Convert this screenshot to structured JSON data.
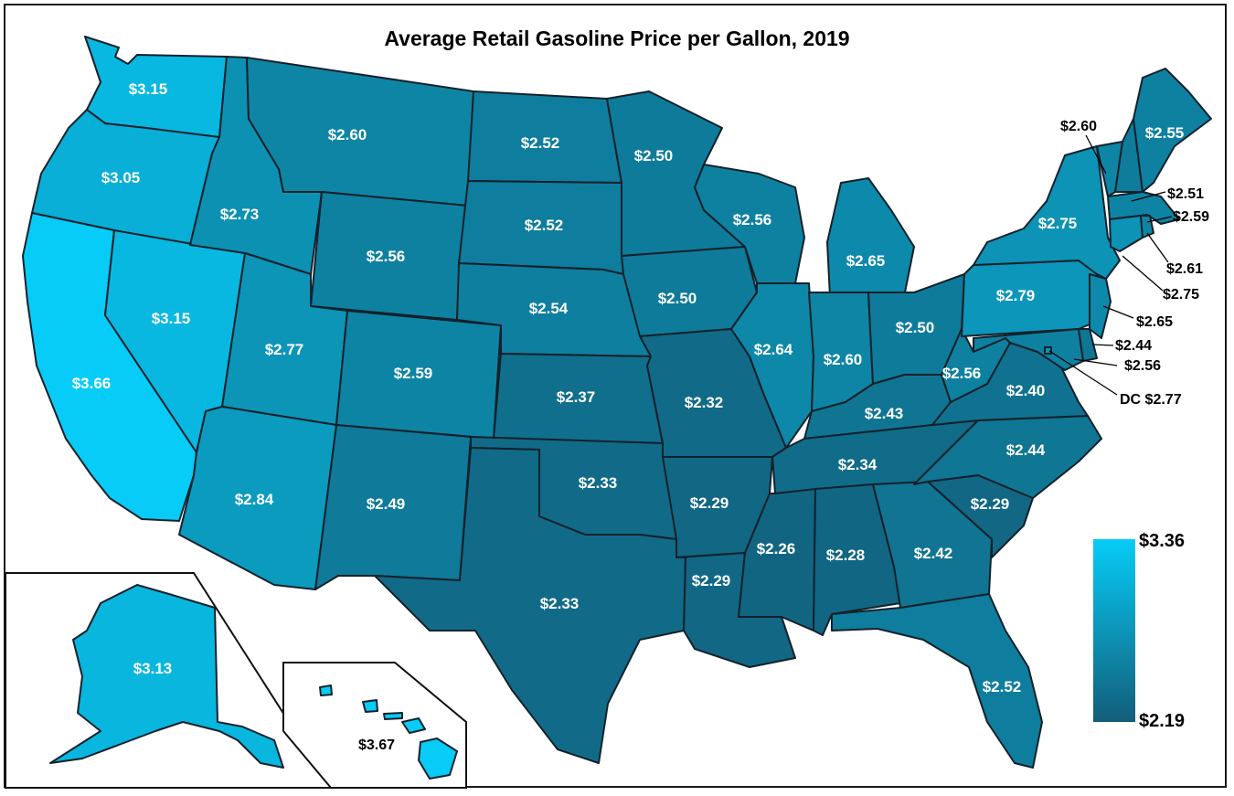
{
  "title": "Average Retail Gasoline Price per Gallon, 2019",
  "colors": {
    "low": "#125e79",
    "high": "#06ccf7",
    "border": "#14212b"
  },
  "legend": {
    "max_label": "$3.36",
    "min_label": "$2.19",
    "max_value": 3.36,
    "min_value": 2.19
  },
  "states": {
    "WA": {
      "label": "$3.15",
      "value": 3.15
    },
    "OR": {
      "label": "$3.05",
      "value": 3.05
    },
    "CA": {
      "label": "$3.66",
      "value": 3.66
    },
    "NV": {
      "label": "$3.15",
      "value": 3.15
    },
    "ID": {
      "label": "$2.73",
      "value": 2.73
    },
    "MT": {
      "label": "$2.60",
      "value": 2.6
    },
    "WY": {
      "label": "$2.56",
      "value": 2.56
    },
    "UT": {
      "label": "$2.77",
      "value": 2.77
    },
    "AZ": {
      "label": "$2.84",
      "value": 2.84
    },
    "CO": {
      "label": "$2.59",
      "value": 2.59
    },
    "NM": {
      "label": "$2.49",
      "value": 2.49
    },
    "ND": {
      "label": "$2.52",
      "value": 2.52
    },
    "SD": {
      "label": "$2.52",
      "value": 2.52
    },
    "NE": {
      "label": "$2.54",
      "value": 2.54
    },
    "KS": {
      "label": "$2.37",
      "value": 2.37
    },
    "OK": {
      "label": "$2.33",
      "value": 2.33
    },
    "TX": {
      "label": "$2.33",
      "value": 2.33
    },
    "MN": {
      "label": "$2.50",
      "value": 2.5
    },
    "IA": {
      "label": "$2.50",
      "value": 2.5
    },
    "MO": {
      "label": "$2.32",
      "value": 2.32
    },
    "AR": {
      "label": "$2.29",
      "value": 2.29
    },
    "LA": {
      "label": "$2.29",
      "value": 2.29
    },
    "WI": {
      "label": "$2.56",
      "value": 2.56
    },
    "IL": {
      "label": "$2.64",
      "value": 2.64
    },
    "MI": {
      "label": "$2.65",
      "value": 2.65
    },
    "IN": {
      "label": "$2.60",
      "value": 2.6
    },
    "OH": {
      "label": "$2.50",
      "value": 2.5
    },
    "KY": {
      "label": "$2.43",
      "value": 2.43
    },
    "TN": {
      "label": "$2.34",
      "value": 2.34
    },
    "MS": {
      "label": "$2.26",
      "value": 2.26
    },
    "AL": {
      "label": "$2.28",
      "value": 2.28
    },
    "GA": {
      "label": "$2.42",
      "value": 2.42
    },
    "FL": {
      "label": "$2.52",
      "value": 2.52
    },
    "SC": {
      "label": "$2.29",
      "value": 2.29
    },
    "NC": {
      "label": "$2.44",
      "value": 2.44
    },
    "VA": {
      "label": "$2.40",
      "value": 2.4
    },
    "WV": {
      "label": "$2.56",
      "value": 2.56
    },
    "PA": {
      "label": "$2.79",
      "value": 2.79
    },
    "NY": {
      "label": "$2.75",
      "value": 2.75
    },
    "ME": {
      "label": "$2.55",
      "value": 2.55
    },
    "VT": {
      "label": "$2.60",
      "value": 2.6
    },
    "NH": {
      "label": "$2.51",
      "value": 2.51
    },
    "MA": {
      "label": "$2.59",
      "value": 2.59
    },
    "RI": {
      "label": "$2.61",
      "value": 2.61
    },
    "CT": {
      "label": "$2.75",
      "value": 2.75
    },
    "NJ": {
      "label": "$2.65",
      "value": 2.65
    },
    "DE": {
      "label": "$2.44",
      "value": 2.44
    },
    "MD": {
      "label": "$2.56",
      "value": 2.56
    },
    "DC": {
      "label": "DC $2.77",
      "value": 2.77
    },
    "AK": {
      "label": "$3.13",
      "value": 3.13
    },
    "HI": {
      "label": "$3.67",
      "value": 3.67
    }
  }
}
